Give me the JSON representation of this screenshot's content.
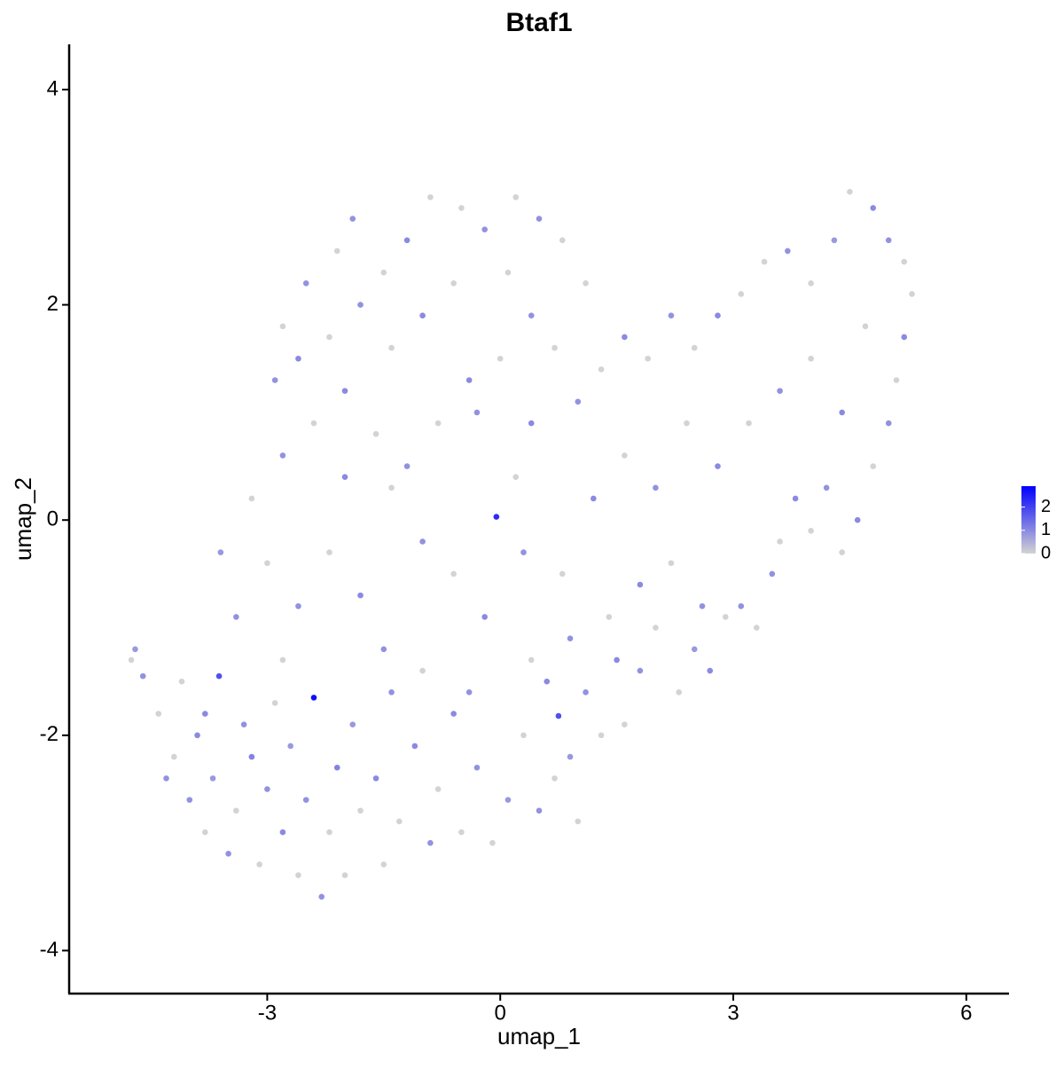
{
  "chart_data": {
    "type": "scatter",
    "title": "Btaf1",
    "x_label": "umap_1",
    "y_label": "umap_2",
    "xlim": [
      -5.55,
      6.55
    ],
    "ylim": [
      -4.4,
      4.42
    ],
    "xticks": [
      -3,
      0,
      3,
      6
    ],
    "yticks": [
      -4,
      -2,
      0,
      2,
      4
    ],
    "color_scale": {
      "low": "#d3d3d3",
      "high": "#0000ff",
      "lim": [
        0,
        2.9
      ],
      "ticks": [
        0,
        1,
        2
      ]
    },
    "x": [
      -4.7,
      -4.75,
      -4.6,
      -4.4,
      -4.2,
      -4.1,
      -4.0,
      -3.9,
      -3.8,
      -3.7,
      -3.62,
      -3.5,
      -3.4,
      -3.3,
      -3.2,
      -3.1,
      -3.0,
      -2.9,
      -2.8,
      -2.7,
      -2.6,
      -2.5,
      -2.4,
      -2.3,
      -2.2,
      -2.1,
      -2.0,
      -1.9,
      -1.8,
      -1.6,
      -1.5,
      -1.4,
      -1.3,
      -1.1,
      -0.9,
      -0.8,
      -0.6,
      -0.5,
      -0.3,
      -0.1,
      0.1,
      0.3,
      0.5,
      0.6,
      0.7,
      0.75,
      0.9,
      1.0,
      1.1,
      1.3,
      1.5,
      1.6,
      1.8,
      2.0,
      2.3,
      2.5,
      2.7,
      2.9,
      3.1,
      3.3,
      3.5,
      3.6,
      3.8,
      4.0,
      4.2,
      4.4,
      4.6,
      4.8,
      5.0,
      5.1,
      5.2,
      5.3,
      5.2,
      5.0,
      4.8,
      4.5,
      4.3,
      4.0,
      3.7,
      3.4,
      3.1,
      2.8,
      2.5,
      2.2,
      1.9,
      1.6,
      1.3,
      1.0,
      0.7,
      0.4,
      0.2,
      -0.05,
      0.3,
      0.8,
      1.2,
      1.6,
      2.0,
      2.4,
      2.8,
      3.2,
      3.6,
      4.0,
      4.4,
      4.7,
      2.2,
      2.6,
      1.8,
      1.4,
      0.9,
      0.4,
      -0.2,
      -0.6,
      -1.0,
      -1.4,
      -1.8,
      -2.2,
      -2.6,
      -3.0,
      -3.4,
      -3.6,
      -3.2,
      -2.8,
      -2.4,
      -2.0,
      -1.6,
      -1.2,
      -0.8,
      -0.4,
      0.0,
      0.4,
      0.1,
      -0.2,
      -0.5,
      -0.9,
      -1.2,
      -1.5,
      -1.9,
      -2.1,
      -2.5,
      -2.8,
      -2.9,
      -2.6,
      -2.2,
      -1.8,
      -1.4,
      -1.0,
      -0.6,
      -0.3,
      0.2,
      0.5,
      0.8,
      1.1,
      -2.0,
      -1.5,
      -1.0,
      -0.4,
      -2.8,
      -3.8,
      -4.3
    ],
    "y": [
      -1.2,
      -1.3,
      -1.45,
      -1.8,
      -2.2,
      -1.5,
      -2.6,
      -2.0,
      -2.9,
      -2.4,
      -1.45,
      -3.1,
      -2.7,
      -1.9,
      -2.2,
      -3.2,
      -2.5,
      -1.7,
      -2.9,
      -2.1,
      -3.3,
      -2.6,
      -1.65,
      -3.5,
      -2.9,
      -2.3,
      -3.3,
      -1.9,
      -2.7,
      -2.4,
      -3.2,
      -1.6,
      -2.8,
      -2.1,
      -3.0,
      -2.5,
      -1.8,
      -2.9,
      -2.3,
      -3.0,
      -2.6,
      -2.0,
      -2.7,
      -1.5,
      -2.4,
      -1.82,
      -2.2,
      -2.8,
      -1.6,
      -2.0,
      -1.3,
      -1.9,
      -1.4,
      -1.0,
      -1.6,
      -1.2,
      -1.4,
      -0.9,
      -0.8,
      -1.0,
      -0.5,
      -0.2,
      0.2,
      -0.1,
      0.3,
      -0.3,
      0.0,
      0.5,
      0.9,
      1.3,
      1.7,
      2.1,
      2.4,
      2.6,
      2.9,
      3.05,
      2.6,
      2.2,
      2.5,
      2.4,
      2.1,
      1.9,
      1.6,
      1.9,
      1.5,
      1.7,
      1.4,
      1.1,
      1.6,
      0.9,
      0.4,
      0.03,
      -0.3,
      -0.5,
      0.2,
      0.6,
      0.3,
      0.9,
      0.5,
      0.9,
      1.2,
      1.5,
      1.0,
      1.8,
      -0.4,
      -0.8,
      -0.6,
      -0.9,
      -1.1,
      -1.3,
      -0.9,
      -0.5,
      -0.2,
      0.3,
      -0.7,
      -0.3,
      -0.8,
      -0.4,
      -0.9,
      -0.3,
      0.2,
      0.6,
      0.9,
      1.2,
      0.8,
      0.5,
      0.9,
      1.3,
      1.5,
      1.9,
      2.3,
      2.7,
      2.9,
      3.0,
      2.6,
      2.3,
      2.8,
      2.5,
      2.2,
      1.8,
      1.3,
      1.5,
      1.7,
      2.0,
      1.6,
      1.9,
      2.2,
      1.0,
      3.0,
      2.8,
      2.6,
      2.2,
      0.4,
      -1.2,
      -1.4,
      -1.6,
      -1.3,
      -1.8,
      -2.4
    ],
    "expression": [
      0.8,
      0,
      0.9,
      0,
      0,
      0,
      0.9,
      1.0,
      0,
      0.8,
      1.8,
      0.9,
      0,
      0.9,
      1.1,
      0,
      0.9,
      0,
      1.0,
      0.8,
      0,
      0.9,
      2.7,
      0.9,
      0,
      1.1,
      0,
      0.8,
      0,
      1.0,
      0,
      0.9,
      0,
      1.0,
      0.9,
      0,
      1.0,
      0,
      0.9,
      0,
      0.8,
      0,
      0.9,
      1.0,
      0,
      1.8,
      0.8,
      0,
      0.9,
      0,
      1.0,
      0,
      0.9,
      0,
      0,
      0.8,
      1.0,
      0,
      0.9,
      0,
      0.9,
      0,
      1.0,
      0,
      0.9,
      0,
      1.0,
      0,
      0.9,
      0,
      1.0,
      0,
      0,
      0.9,
      1.0,
      0,
      0.8,
      0,
      0.9,
      0,
      0,
      1.0,
      0,
      0.9,
      0,
      1.0,
      0,
      0.9,
      0,
      1.0,
      0,
      2.3,
      0.9,
      0,
      1.0,
      0,
      0.9,
      0,
      1.0,
      0,
      0.9,
      0,
      1.0,
      0,
      0,
      0.9,
      1.0,
      0,
      0.9,
      0,
      1.0,
      0,
      0.9,
      0,
      1.0,
      0,
      0.9,
      0,
      0.9,
      0.8,
      0,
      0.9,
      0,
      1.0,
      0,
      0.9,
      0,
      1.0,
      0,
      0.9,
      0,
      0.9,
      0,
      0,
      1.0,
      0,
      0.9,
      0,
      0.9,
      0,
      0.9,
      1.0,
      0,
      0.9,
      0,
      1.0,
      0,
      0.9,
      0,
      0.9,
      0,
      0,
      1.0,
      0.9,
      0,
      0.9,
      0,
      1.0,
      0.9
    ]
  }
}
